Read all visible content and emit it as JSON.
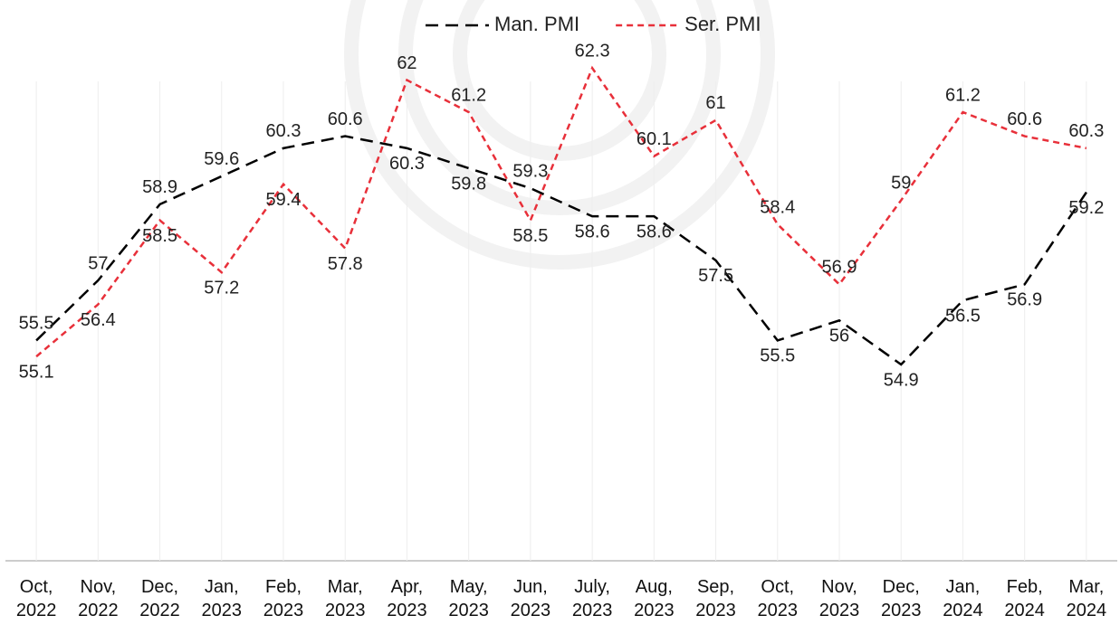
{
  "chart_data": {
    "type": "line",
    "categories": [
      "Oct, 2022",
      "Nov, 2022",
      "Dec, 2022",
      "Jan, 2023",
      "Feb, 2023",
      "Mar, 2023",
      "Apr, 2023",
      "May, 2023",
      "Jun, 2023",
      "July, 2023",
      "Aug, 2023",
      "Sep, 2023",
      "Oct, 2023",
      "Nov, 2023",
      "Dec, 2023",
      "Jan, 2024",
      "Feb, 2024",
      "Mar, 2024"
    ],
    "series": [
      {
        "name": "Man. PMI",
        "color": "#000000",
        "values": [
          55.5,
          57,
          58.9,
          59.6,
          60.3,
          60.6,
          60.3,
          59.8,
          59.3,
          58.6,
          58.6,
          57.5,
          55.5,
          56,
          54.9,
          56.5,
          56.9,
          59.2
        ]
      },
      {
        "name": "Ser. PMI",
        "color": "#e8303a",
        "values": [
          55.1,
          56.4,
          58.5,
          57.2,
          59.4,
          57.8,
          62,
          61.2,
          58.5,
          62.3,
          60.1,
          61,
          58.4,
          56.9,
          59,
          61.2,
          60.6,
          60.3
        ]
      }
    ],
    "ylim": [
      50,
      64
    ],
    "legend": "top",
    "grid": true
  }
}
